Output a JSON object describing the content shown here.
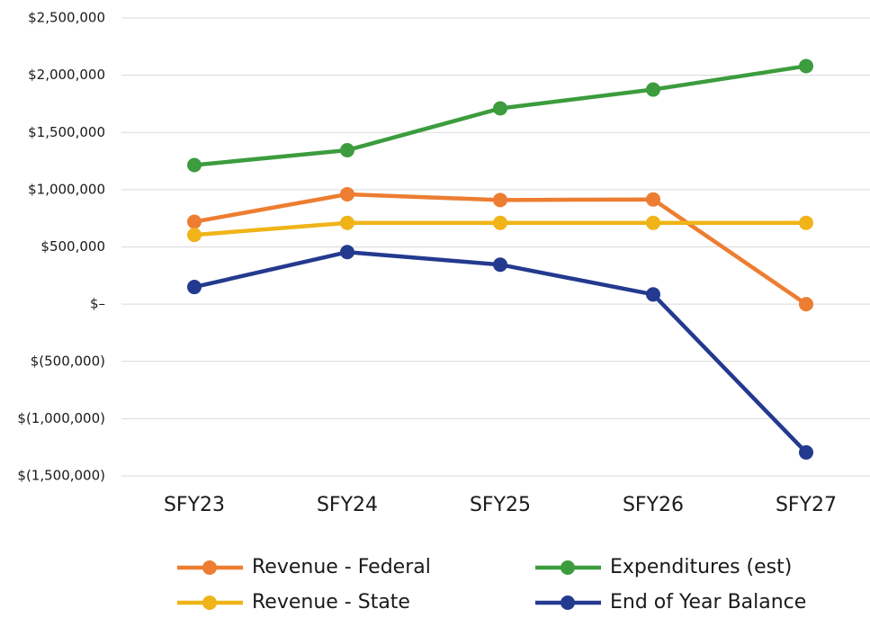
{
  "chart_data": {
    "type": "line",
    "categories": [
      "SFY23",
      "SFY24",
      "SFY25",
      "SFY26",
      "SFY27"
    ],
    "series": [
      {
        "name": "Revenue - Federal",
        "color": "#ed7d31",
        "values": [
          720000,
          960000,
          910000,
          915000,
          0
        ]
      },
      {
        "name": "Expenditures (est)",
        "color": "#3c9c3e",
        "values": [
          1215000,
          1345000,
          1710000,
          1875000,
          2080000
        ]
      },
      {
        "name": "Revenue - State",
        "color": "#f0b419",
        "values": [
          605000,
          710000,
          710000,
          710000,
          710000
        ]
      },
      {
        "name": "End of Year Balance",
        "color": "#233a8f",
        "values": [
          150000,
          455000,
          345000,
          85000,
          -1295000
        ]
      }
    ],
    "ylim": [
      -1500000,
      2500000
    ],
    "yticks": [
      {
        "value": -1500000,
        "label": "$(1,500,000)"
      },
      {
        "value": -1000000,
        "label": "$(1,000,000)"
      },
      {
        "value": -500000,
        "label": "$(500,000)"
      },
      {
        "value": 0,
        "label": "$–"
      },
      {
        "value": 500000,
        "label": "$500,000"
      },
      {
        "value": 1000000,
        "label": "$1,000,000"
      },
      {
        "value": 1500000,
        "label": "$1,500,000"
      },
      {
        "value": 2000000,
        "label": "$2,000,000"
      },
      {
        "value": 2500000,
        "label": "$2,500,000"
      }
    ],
    "grid": true,
    "legend": "bottom"
  }
}
